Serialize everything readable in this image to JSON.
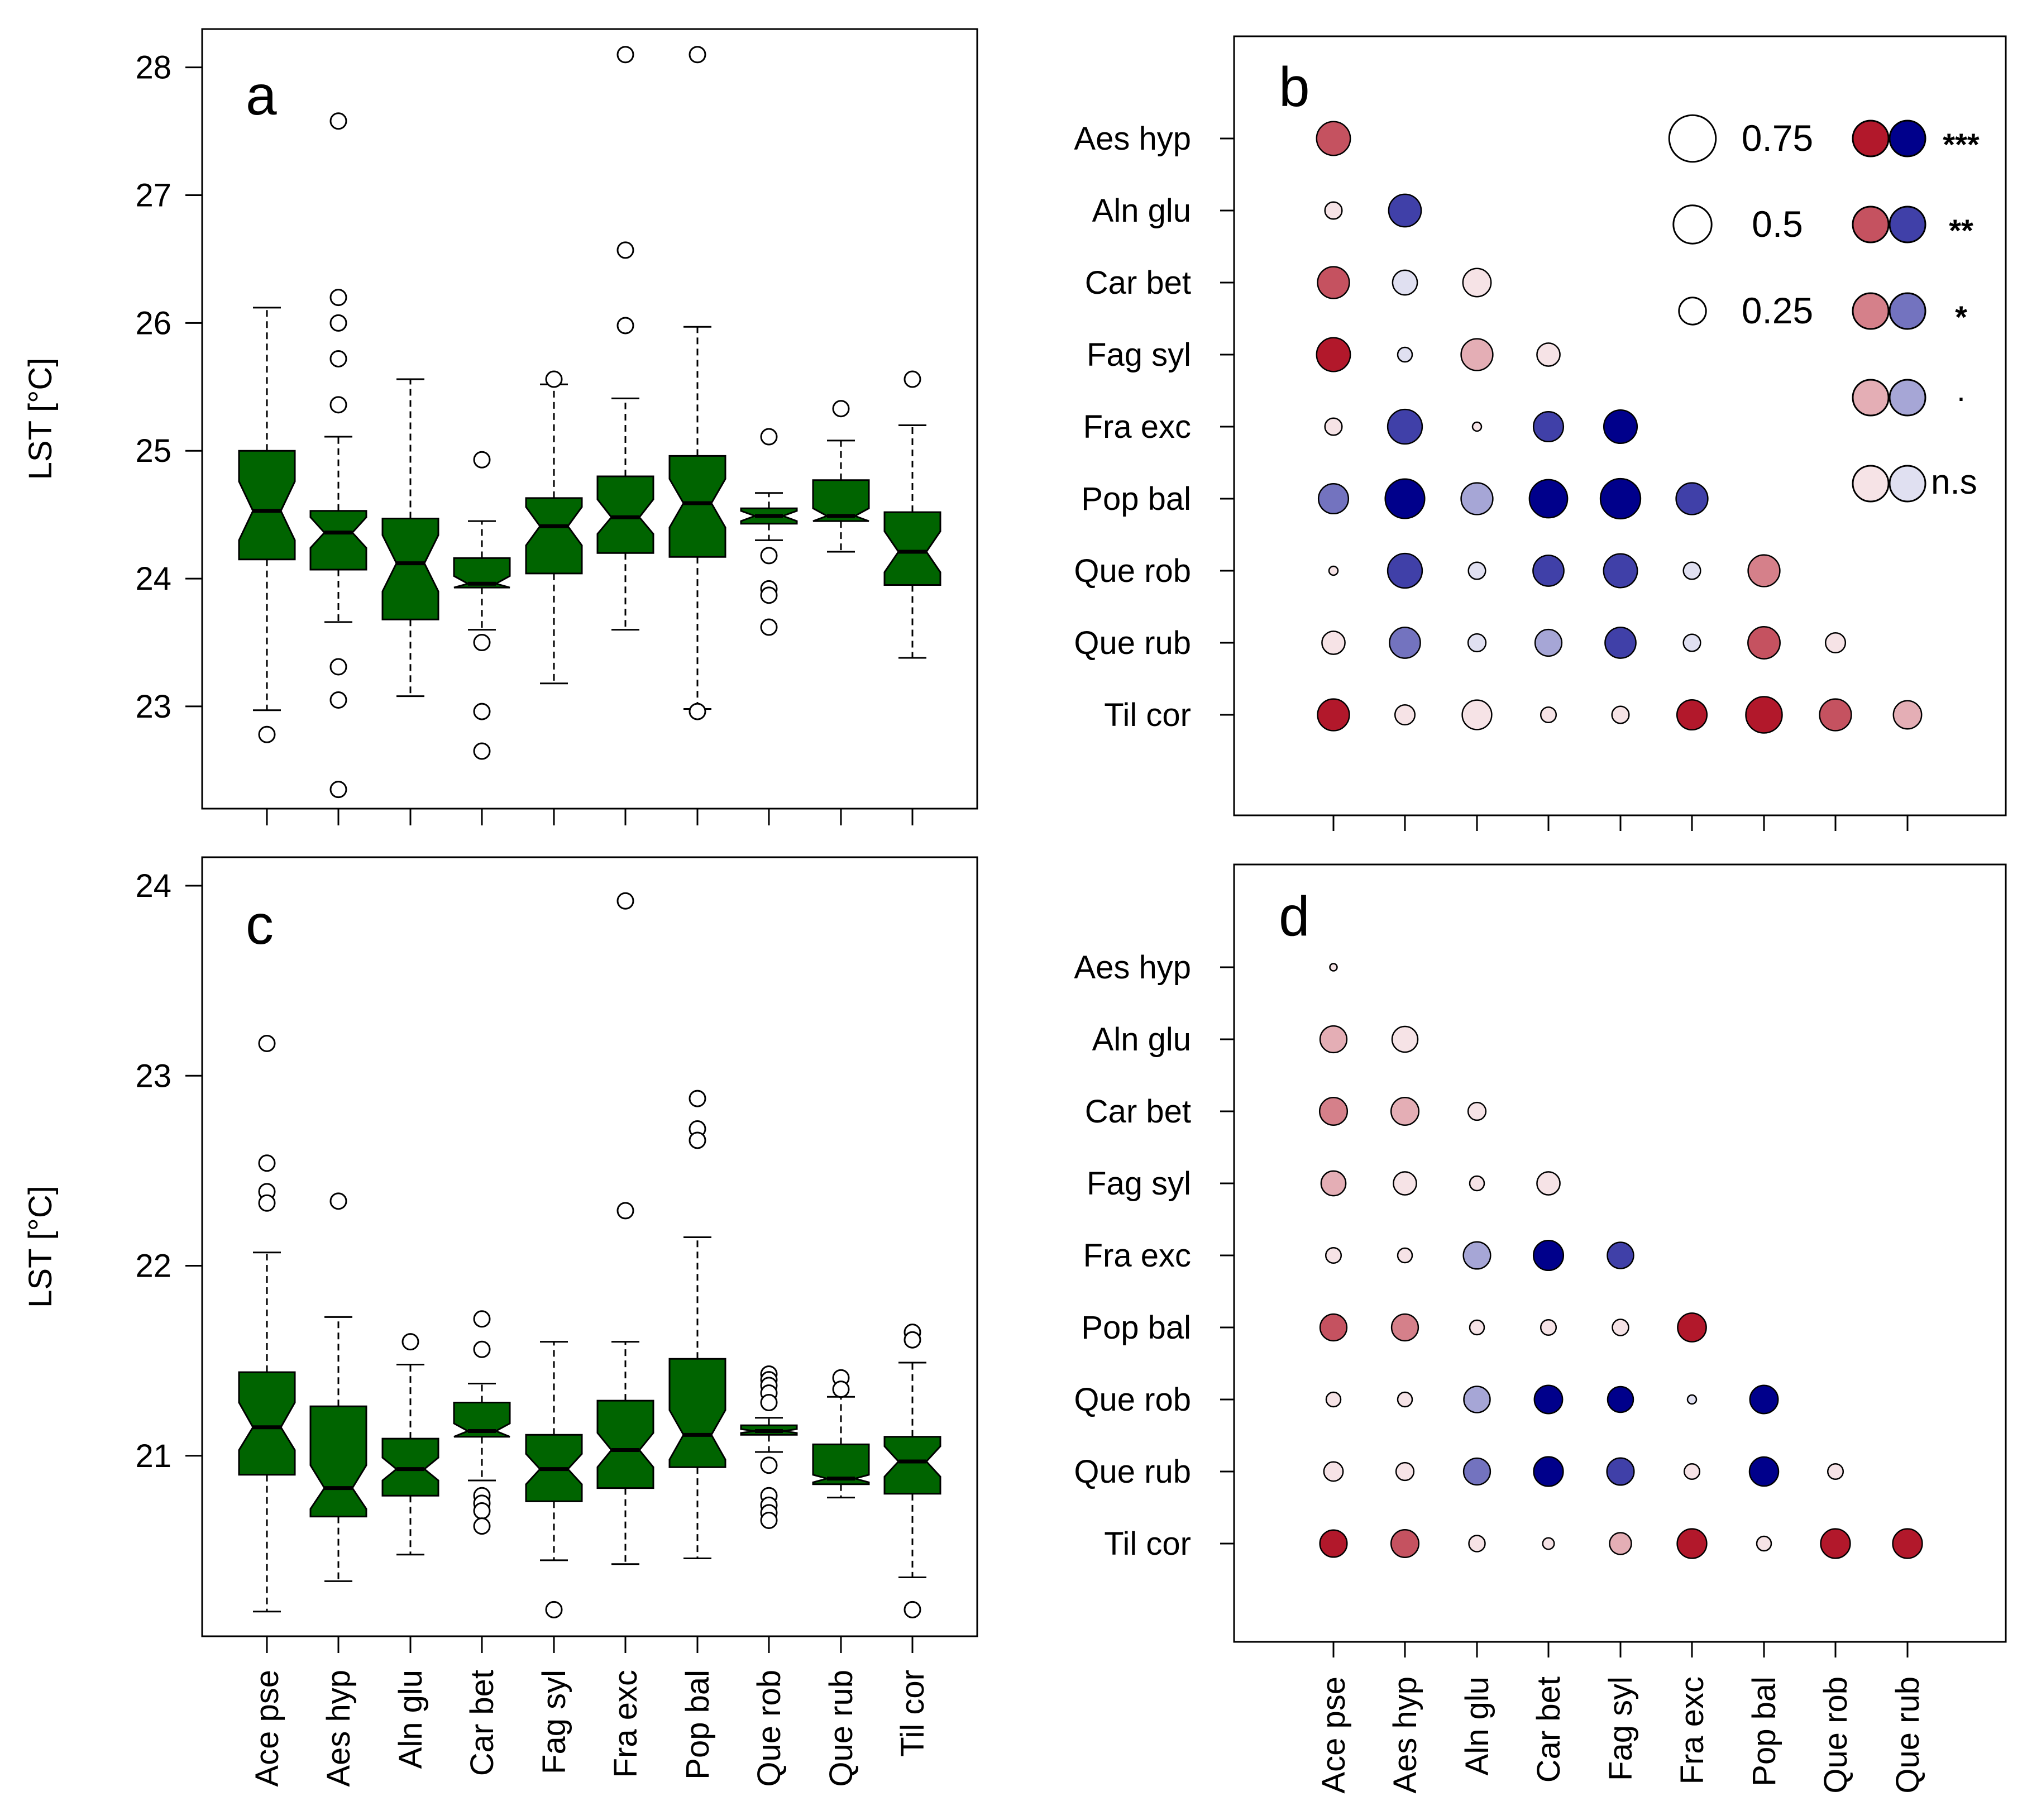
{
  "figure": {
    "species": [
      "Ace pse",
      "Aes hyp",
      "Aln glu",
      "Car bet",
      "Fag syl",
      "Fra exc",
      "Pop bal",
      "Que rob",
      "Que rub",
      "Til cor"
    ],
    "box_color": "#006400",
    "positive_color": "#B2182B",
    "negative_color": "#00008B",
    "panels": {
      "a": {
        "letter": "a"
      },
      "b": {
        "letter": "b"
      },
      "c": {
        "letter": "c"
      },
      "d": {
        "letter": "d"
      }
    },
    "legend": {
      "sizes": [
        {
          "label": "0.75",
          "value": 0.75
        },
        {
          "label": "0.5",
          "value": 0.5
        },
        {
          "label": "0.25",
          "value": 0.25
        }
      ],
      "significance": [
        {
          "label": "***",
          "level": 4
        },
        {
          "label": "**",
          "level": 3
        },
        {
          "label": "*",
          "level": 2
        },
        {
          "label": "·",
          "level": 1
        },
        {
          "label": "n.s",
          "level": 0
        }
      ]
    }
  },
  "chart_data": [
    {
      "panel": "a",
      "type": "boxplot",
      "notched": true,
      "ylabel": "LST [°C]",
      "ylim": [
        22.2,
        28.3
      ],
      "yticks": [
        "23",
        "24",
        "25",
        "26",
        "27",
        "28"
      ],
      "categories": [
        "Ace pse",
        "Aes hyp",
        "Aln glu",
        "Car bet",
        "Fag syl",
        "Fra exc",
        "Pop bal",
        "Que rob",
        "Que rub",
        "Til cor"
      ],
      "boxes": [
        {
          "whisker_low": 22.97,
          "q1": 24.15,
          "median": 24.53,
          "q3": 25.0,
          "whisker_high": 26.12,
          "notch_low": 24.3,
          "notch_high": 24.76,
          "outliers": [
            22.78
          ]
        },
        {
          "whisker_low": 23.66,
          "q1": 24.07,
          "median": 24.36,
          "q3": 24.53,
          "whisker_high": 25.11,
          "notch_low": 24.24,
          "notch_high": 24.48,
          "outliers": [
            27.58,
            26.2,
            26.0,
            25.72,
            25.36,
            23.31,
            23.05,
            22.35
          ]
        },
        {
          "whisker_low": 23.08,
          "q1": 23.68,
          "median": 24.12,
          "q3": 24.47,
          "whisker_high": 25.56,
          "notch_low": 23.9,
          "notch_high": 24.34,
          "outliers": []
        },
        {
          "whisker_low": 23.6,
          "q1": 23.93,
          "median": 23.96,
          "q3": 24.16,
          "whisker_high": 24.45,
          "notch_low": 23.9,
          "notch_high": 24.02,
          "outliers": [
            24.93,
            23.5,
            22.96,
            22.65
          ]
        },
        {
          "whisker_low": 23.18,
          "q1": 24.04,
          "median": 24.41,
          "q3": 24.63,
          "whisker_high": 25.52,
          "notch_low": 24.26,
          "notch_high": 24.56,
          "outliers": [
            25.56
          ]
        },
        {
          "whisker_low": 23.6,
          "q1": 24.2,
          "median": 24.48,
          "q3": 24.8,
          "whisker_high": 25.41,
          "notch_low": 24.35,
          "notch_high": 24.62,
          "outliers": [
            28.1,
            26.57,
            25.98
          ]
        },
        {
          "whisker_low": 22.98,
          "q1": 24.17,
          "median": 24.59,
          "q3": 24.96,
          "whisker_high": 25.97,
          "notch_low": 24.4,
          "notch_high": 24.78,
          "outliers": [
            28.1,
            22.96
          ]
        },
        {
          "whisker_low": 24.3,
          "q1": 24.43,
          "median": 24.49,
          "q3": 24.55,
          "whisker_high": 24.67,
          "notch_low": 24.45,
          "notch_high": 24.53,
          "outliers": [
            25.11,
            24.18,
            23.92,
            23.87,
            23.62
          ]
        },
        {
          "whisker_low": 24.21,
          "q1": 24.45,
          "median": 24.49,
          "q3": 24.77,
          "whisker_high": 25.08,
          "notch_low": 24.43,
          "notch_high": 24.55,
          "outliers": [
            25.33
          ]
        },
        {
          "whisker_low": 23.38,
          "q1": 23.95,
          "median": 24.21,
          "q3": 24.52,
          "whisker_high": 25.2,
          "notch_low": 24.05,
          "notch_high": 24.37,
          "outliers": [
            25.56
          ]
        }
      ]
    },
    {
      "panel": "c",
      "type": "boxplot",
      "notched": true,
      "ylabel": "LST [°C]",
      "ylim": [
        20.05,
        24.15
      ],
      "yticks": [
        "21",
        "22",
        "23",
        "24"
      ],
      "categories": [
        "Ace pse",
        "Aes hyp",
        "Aln glu",
        "Car bet",
        "Fag syl",
        "Fra exc",
        "Pop bal",
        "Que rob",
        "Que rub",
        "Til cor"
      ],
      "boxes": [
        {
          "whisker_low": 20.18,
          "q1": 20.9,
          "median": 21.15,
          "q3": 21.44,
          "whisker_high": 22.07,
          "notch_low": 21.03,
          "notch_high": 21.28,
          "outliers": [
            23.17,
            22.54,
            22.39,
            22.33
          ]
        },
        {
          "whisker_low": 20.34,
          "q1": 20.68,
          "median": 20.83,
          "q3": 21.26,
          "whisker_high": 21.73,
          "notch_low": 20.72,
          "notch_high": 20.95,
          "outliers": [
            22.34
          ]
        },
        {
          "whisker_low": 20.48,
          "q1": 20.79,
          "median": 20.93,
          "q3": 21.09,
          "whisker_high": 21.48,
          "notch_low": 20.87,
          "notch_high": 20.99,
          "outliers": [
            21.6
          ]
        },
        {
          "whisker_low": 20.87,
          "q1": 21.1,
          "median": 21.13,
          "q3": 21.28,
          "whisker_high": 21.38,
          "notch_low": 21.09,
          "notch_high": 21.17,
          "outliers": [
            21.72,
            21.56,
            20.79,
            20.75,
            20.71,
            20.63
          ]
        },
        {
          "whisker_low": 20.45,
          "q1": 20.76,
          "median": 20.93,
          "q3": 21.11,
          "whisker_high": 21.6,
          "notch_low": 20.85,
          "notch_high": 21.01,
          "outliers": [
            20.19
          ]
        },
        {
          "whisker_low": 20.43,
          "q1": 20.83,
          "median": 21.03,
          "q3": 21.29,
          "whisker_high": 21.6,
          "notch_low": 20.94,
          "notch_high": 21.12,
          "outliers": [
            23.92,
            22.29
          ]
        },
        {
          "whisker_low": 20.46,
          "q1": 20.94,
          "median": 21.11,
          "q3": 21.51,
          "whisker_high": 22.15,
          "notch_low": 20.98,
          "notch_high": 21.24,
          "outliers": [
            22.88,
            22.72,
            22.66
          ]
        },
        {
          "whisker_low": 21.02,
          "q1": 21.11,
          "median": 21.13,
          "q3": 21.16,
          "whisker_high": 21.2,
          "notch_low": 21.12,
          "notch_high": 21.14,
          "outliers": [
            21.43,
            21.4,
            21.37,
            21.33,
            21.28,
            20.95,
            20.79,
            20.74,
            20.7,
            20.66
          ]
        },
        {
          "whisker_low": 20.78,
          "q1": 20.85,
          "median": 20.88,
          "q3": 21.06,
          "whisker_high": 21.31,
          "notch_low": 20.86,
          "notch_high": 20.9,
          "outliers": [
            21.41,
            21.35
          ]
        },
        {
          "whisker_low": 20.36,
          "q1": 20.8,
          "median": 20.97,
          "q3": 21.1,
          "whisker_high": 21.49,
          "notch_low": 20.89,
          "notch_high": 21.05,
          "outliers": [
            21.65,
            21.61,
            20.19
          ]
        }
      ]
    },
    {
      "panel": "b",
      "type": "correlation_matrix",
      "rows": [
        "Aes hyp",
        "Aln glu",
        "Car bet",
        "Fag syl",
        "Fra exc",
        "Pop bal",
        "Que rob",
        "Que rub",
        "Til cor"
      ],
      "cols": [
        "Ace pse",
        "Aes hyp",
        "Aln glu",
        "Car bet",
        "Fag syl",
        "Fra exc",
        "Pop bal",
        "Que rob",
        "Que rub"
      ],
      "cells": [
        {
          "row": "Aes hyp",
          "col": "Ace pse",
          "r": 0.43,
          "sig": 3
        },
        {
          "row": "Aln glu",
          "col": "Ace pse",
          "r": 0.11,
          "sig": 0
        },
        {
          "row": "Aln glu",
          "col": "Aes hyp",
          "r": -0.4,
          "sig": 3
        },
        {
          "row": "Car bet",
          "col": "Ace pse",
          "r": 0.38,
          "sig": 3
        },
        {
          "row": "Car bet",
          "col": "Aes hyp",
          "r": -0.23,
          "sig": 0
        },
        {
          "row": "Car bet",
          "col": "Aln glu",
          "r": 0.3,
          "sig": 0
        },
        {
          "row": "Fag syl",
          "col": "Ace pse",
          "r": 0.43,
          "sig": 4
        },
        {
          "row": "Fag syl",
          "col": "Aes hyp",
          "r": -0.08,
          "sig": 0
        },
        {
          "row": "Fag syl",
          "col": "Aln glu",
          "r": 0.38,
          "sig": 1
        },
        {
          "row": "Fag syl",
          "col": "Car bet",
          "r": 0.2,
          "sig": 0
        },
        {
          "row": "Fra exc",
          "col": "Ace pse",
          "r": 0.11,
          "sig": 0
        },
        {
          "row": "Fra exc",
          "col": "Aes hyp",
          "r": -0.45,
          "sig": 3
        },
        {
          "row": "Fra exc",
          "col": "Aln glu",
          "r": 0.03,
          "sig": 0
        },
        {
          "row": "Fra exc",
          "col": "Car bet",
          "r": -0.34,
          "sig": 3
        },
        {
          "row": "Fra exc",
          "col": "Fag syl",
          "r": -0.42,
          "sig": 4
        },
        {
          "row": "Pop bal",
          "col": "Ace pse",
          "r": -0.34,
          "sig": 2
        },
        {
          "row": "Pop bal",
          "col": "Aes hyp",
          "r": -0.59,
          "sig": 4
        },
        {
          "row": "Pop bal",
          "col": "Aln glu",
          "r": -0.38,
          "sig": 1
        },
        {
          "row": "Pop bal",
          "col": "Car bet",
          "r": -0.55,
          "sig": 4
        },
        {
          "row": "Pop bal",
          "col": "Fag syl",
          "r": -0.61,
          "sig": 4
        },
        {
          "row": "Pop bal",
          "col": "Fra exc",
          "r": -0.38,
          "sig": 3
        },
        {
          "row": "Que rob",
          "col": "Ace pse",
          "r": 0.03,
          "sig": 0
        },
        {
          "row": "Que rob",
          "col": "Aes hyp",
          "r": -0.45,
          "sig": 3
        },
        {
          "row": "Que rob",
          "col": "Aln glu",
          "r": -0.11,
          "sig": 0
        },
        {
          "row": "Que rob",
          "col": "Car bet",
          "r": -0.36,
          "sig": 3
        },
        {
          "row": "Que rob",
          "col": "Fag syl",
          "r": -0.43,
          "sig": 3
        },
        {
          "row": "Que rob",
          "col": "Fra exc",
          "r": -0.11,
          "sig": 0
        },
        {
          "row": "Que rob",
          "col": "Pop bal",
          "r": 0.38,
          "sig": 2
        },
        {
          "row": "Que rub",
          "col": "Ace pse",
          "r": 0.2,
          "sig": 0
        },
        {
          "row": "Que rub",
          "col": "Aes hyp",
          "r": -0.36,
          "sig": 2
        },
        {
          "row": "Que rub",
          "col": "Aln glu",
          "r": -0.12,
          "sig": 0
        },
        {
          "row": "Que rub",
          "col": "Car bet",
          "r": -0.27,
          "sig": 1
        },
        {
          "row": "Que rub",
          "col": "Fag syl",
          "r": -0.36,
          "sig": 3
        },
        {
          "row": "Que rub",
          "col": "Fra exc",
          "r": -0.11,
          "sig": 0
        },
        {
          "row": "Que rub",
          "col": "Pop bal",
          "r": 0.39,
          "sig": 3
        },
        {
          "row": "Que rub",
          "col": "Que rob",
          "r": 0.15,
          "sig": 0
        },
        {
          "row": "Til cor",
          "col": "Ace pse",
          "r": 0.38,
          "sig": 4
        },
        {
          "row": "Til cor",
          "col": "Aes hyp",
          "r": 0.15,
          "sig": 0
        },
        {
          "row": "Til cor",
          "col": "Aln glu",
          "r": 0.33,
          "sig": 0
        },
        {
          "row": "Til cor",
          "col": "Car bet",
          "r": 0.09,
          "sig": 0
        },
        {
          "row": "Til cor",
          "col": "Fag syl",
          "r": 0.11,
          "sig": 0
        },
        {
          "row": "Til cor",
          "col": "Fra exc",
          "r": 0.34,
          "sig": 4
        },
        {
          "row": "Til cor",
          "col": "Pop bal",
          "r": 0.5,
          "sig": 4
        },
        {
          "row": "Til cor",
          "col": "Que rob",
          "r": 0.38,
          "sig": 3
        },
        {
          "row": "Til cor",
          "col": "Que rub",
          "r": 0.3,
          "sig": 1
        }
      ]
    },
    {
      "panel": "d",
      "type": "correlation_matrix",
      "rows": [
        "Aes hyp",
        "Aln glu",
        "Car bet",
        "Fag syl",
        "Fra exc",
        "Pop bal",
        "Que rob",
        "Que rub",
        "Til cor"
      ],
      "cols": [
        "Ace pse",
        "Aes hyp",
        "Aln glu",
        "Car bet",
        "Fag syl",
        "Fra exc",
        "Pop bal",
        "Que rob",
        "Que rub"
      ],
      "cells": [
        {
          "row": "Aes hyp",
          "col": "Ace pse",
          "r": 0.02,
          "sig": 0
        },
        {
          "row": "Aln glu",
          "col": "Ace pse",
          "r": 0.27,
          "sig": 1
        },
        {
          "row": "Aln glu",
          "col": "Aes hyp",
          "r": 0.25,
          "sig": 0
        },
        {
          "row": "Car bet",
          "col": "Ace pse",
          "r": 0.29,
          "sig": 2
        },
        {
          "row": "Car bet",
          "col": "Aes hyp",
          "r": 0.29,
          "sig": 1
        },
        {
          "row": "Car bet",
          "col": "Aln glu",
          "r": 0.12,
          "sig": 0
        },
        {
          "row": "Fag syl",
          "col": "Ace pse",
          "r": 0.23,
          "sig": 1
        },
        {
          "row": "Fag syl",
          "col": "Aes hyp",
          "r": 0.2,
          "sig": 0
        },
        {
          "row": "Fag syl",
          "col": "Aln glu",
          "r": 0.08,
          "sig": 0
        },
        {
          "row": "Fag syl",
          "col": "Car bet",
          "r": 0.2,
          "sig": 0
        },
        {
          "row": "Fra exc",
          "col": "Ace pse",
          "r": 0.09,
          "sig": 0
        },
        {
          "row": "Fra exc",
          "col": "Aes hyp",
          "r": 0.08,
          "sig": 0
        },
        {
          "row": "Fra exc",
          "col": "Aln glu",
          "r": -0.28,
          "sig": 1
        },
        {
          "row": "Fra exc",
          "col": "Car bet",
          "r": -0.34,
          "sig": 4
        },
        {
          "row": "Fra exc",
          "col": "Fag syl",
          "r": -0.26,
          "sig": 3
        },
        {
          "row": "Pop bal",
          "col": "Ace pse",
          "r": 0.27,
          "sig": 3
        },
        {
          "row": "Pop bal",
          "col": "Aes hyp",
          "r": 0.27,
          "sig": 2
        },
        {
          "row": "Pop bal",
          "col": "Aln glu",
          "r": 0.08,
          "sig": 0
        },
        {
          "row": "Pop bal",
          "col": "Car bet",
          "r": 0.09,
          "sig": 0
        },
        {
          "row": "Pop bal",
          "col": "Fag syl",
          "r": 0.1,
          "sig": 0
        },
        {
          "row": "Pop bal",
          "col": "Fra exc",
          "r": 0.31,
          "sig": 4
        },
        {
          "row": "Que rob",
          "col": "Ace pse",
          "r": 0.08,
          "sig": 0
        },
        {
          "row": "Que rob",
          "col": "Aes hyp",
          "r": 0.08,
          "sig": 0
        },
        {
          "row": "Que rob",
          "col": "Aln glu",
          "r": -0.26,
          "sig": 1
        },
        {
          "row": "Que rob",
          "col": "Car bet",
          "r": -0.3,
          "sig": 4
        },
        {
          "row": "Que rob",
          "col": "Fag syl",
          "r": -0.25,
          "sig": 4
        },
        {
          "row": "Que rob",
          "col": "Fra exc",
          "r": -0.03,
          "sig": 0
        },
        {
          "row": "Que rob",
          "col": "Pop bal",
          "r": -0.3,
          "sig": 4
        },
        {
          "row": "Que rub",
          "col": "Ace pse",
          "r": 0.14,
          "sig": 0
        },
        {
          "row": "Que rub",
          "col": "Aes hyp",
          "r": 0.12,
          "sig": 0
        },
        {
          "row": "Que rub",
          "col": "Aln glu",
          "r": -0.27,
          "sig": 2
        },
        {
          "row": "Que rub",
          "col": "Car bet",
          "r": -0.33,
          "sig": 4
        },
        {
          "row": "Que rub",
          "col": "Fag syl",
          "r": -0.28,
          "sig": 3
        },
        {
          "row": "Que rub",
          "col": "Fra exc",
          "r": 0.09,
          "sig": 0
        },
        {
          "row": "Que rub",
          "col": "Pop bal",
          "r": -0.32,
          "sig": 4
        },
        {
          "row": "Que rub",
          "col": "Que rob",
          "r": 0.09,
          "sig": 0
        },
        {
          "row": "Til cor",
          "col": "Ace pse",
          "r": 0.28,
          "sig": 4
        },
        {
          "row": "Til cor",
          "col": "Aes hyp",
          "r": 0.29,
          "sig": 3
        },
        {
          "row": "Til cor",
          "col": "Aln glu",
          "r": 0.1,
          "sig": 0
        },
        {
          "row": "Til cor",
          "col": "Car bet",
          "r": 0.05,
          "sig": 0
        },
        {
          "row": "Til cor",
          "col": "Fag syl",
          "r": 0.18,
          "sig": 1
        },
        {
          "row": "Til cor",
          "col": "Fra exc",
          "r": 0.33,
          "sig": 4
        },
        {
          "row": "Til cor",
          "col": "Pop bal",
          "r": 0.08,
          "sig": 0
        },
        {
          "row": "Til cor",
          "col": "Que rob",
          "r": 0.33,
          "sig": 4
        },
        {
          "row": "Til cor",
          "col": "Que rub",
          "r": 0.33,
          "sig": 4
        }
      ]
    }
  ]
}
